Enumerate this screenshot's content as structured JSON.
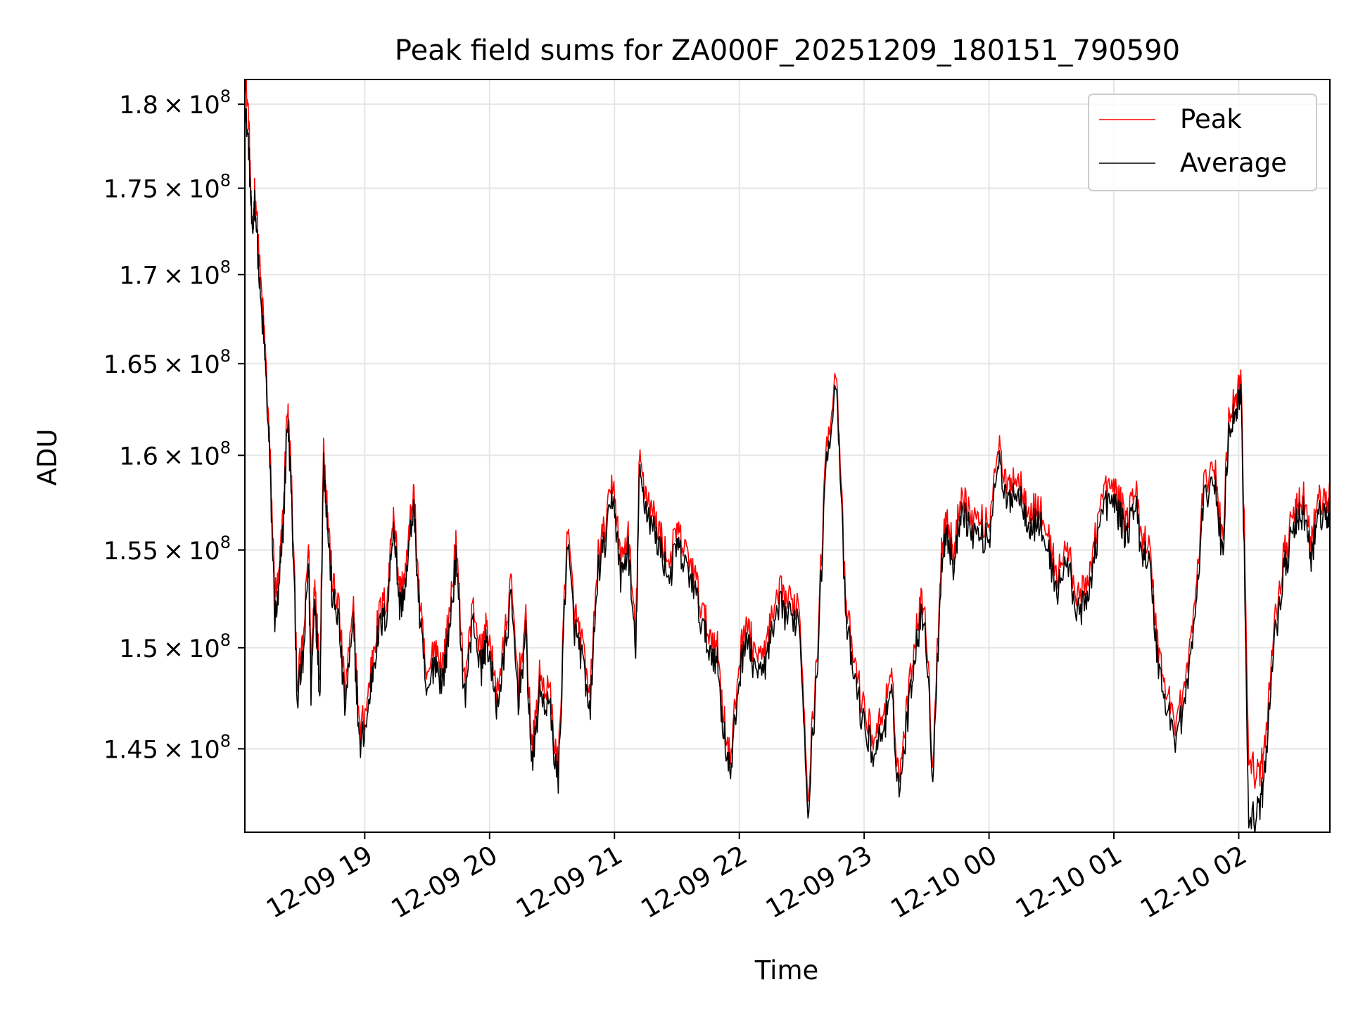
{
  "chart_data": {
    "type": "line",
    "title": "Peak field sums for ZA000F_20251209_180151_790590",
    "xlabel": "Time",
    "ylabel": "ADU",
    "xlim_hours": [
      18.04,
      26.73
    ],
    "ylim": [
      141000000,
      181500000
    ],
    "y_scale": "log",
    "grid": true,
    "legend_position": "top-right",
    "x_ticks": [
      {
        "hours": 19,
        "label": "12-09 19"
      },
      {
        "hours": 20,
        "label": "12-09 20"
      },
      {
        "hours": 21,
        "label": "12-09 21"
      },
      {
        "hours": 22,
        "label": "12-09 22"
      },
      {
        "hours": 23,
        "label": "12-09 23"
      },
      {
        "hours": 24,
        "label": "12-10 00"
      },
      {
        "hours": 25,
        "label": "12-10 01"
      },
      {
        "hours": 26,
        "label": "12-10 02"
      }
    ],
    "y_ticks": [
      {
        "value": 145000000,
        "mantissa": "1.45",
        "exponent": "8"
      },
      {
        "value": 150000000,
        "mantissa": "1.5",
        "exponent": "8"
      },
      {
        "value": 155000000,
        "mantissa": "1.55",
        "exponent": "8"
      },
      {
        "value": 160000000,
        "mantissa": "1.6",
        "exponent": "8"
      },
      {
        "value": 165000000,
        "mantissa": "1.65",
        "exponent": "8"
      },
      {
        "value": 170000000,
        "mantissa": "1.7",
        "exponent": "8"
      },
      {
        "value": 175000000,
        "mantissa": "1.75",
        "exponent": "8"
      },
      {
        "value": 180000000,
        "mantissa": "1.8",
        "exponent": "8"
      }
    ],
    "times_symbol": "×",
    "y_mantissa_base": "10",
    "series": [
      {
        "name": "Peak",
        "color": "#ff0000",
        "offset_e8": 0.003,
        "x_hours": [
          18.04,
          18.07,
          18.1,
          18.12,
          18.16,
          18.2,
          18.24,
          18.28,
          18.31,
          18.35,
          18.38,
          18.41,
          18.46,
          18.51,
          18.55,
          18.57,
          18.6,
          18.64,
          18.67,
          18.7,
          18.74,
          18.79,
          18.84,
          18.91,
          18.96,
          19.02,
          19.07,
          19.12,
          19.18,
          19.23,
          19.28,
          19.33,
          19.39,
          19.44,
          19.5,
          19.56,
          19.62,
          19.67,
          19.73,
          19.8,
          19.87,
          19.93,
          19.98,
          20.05,
          20.1,
          20.17,
          20.23,
          20.29,
          20.34,
          20.4,
          20.48,
          20.55,
          20.62,
          20.68,
          20.74,
          20.8,
          20.87,
          20.93,
          20.99,
          21.05,
          21.11,
          21.17,
          21.2,
          21.25,
          21.3,
          21.37,
          21.44,
          21.5,
          21.55,
          21.62,
          21.69,
          21.75,
          21.82,
          21.87,
          21.93,
          21.99,
          22.05,
          22.1,
          22.18,
          22.25,
          22.33,
          22.4,
          22.48,
          22.55,
          22.62,
          22.7,
          22.78,
          22.85,
          22.92,
          23.0,
          23.08,
          23.15,
          23.22,
          23.28,
          23.35,
          23.42,
          23.48,
          23.55,
          23.62,
          23.66,
          23.72,
          23.78,
          23.85,
          23.92,
          24.0,
          24.07,
          24.14,
          24.2,
          24.27,
          24.33,
          24.4,
          24.48,
          24.55,
          24.62,
          24.7,
          24.78,
          24.85,
          24.92,
          25.0,
          25.05,
          25.1,
          25.17,
          25.22,
          25.28,
          25.35,
          25.42,
          25.5,
          25.58,
          25.65,
          25.72,
          25.8,
          25.87,
          25.92,
          25.98,
          26.02,
          26.08,
          26.15,
          26.2,
          26.27,
          26.35,
          26.42,
          26.47,
          26.52,
          26.58,
          26.64,
          26.7,
          26.73
        ],
        "values_e8": [
          1.815,
          1.79,
          1.715,
          1.75,
          1.7,
          1.66,
          1.6,
          1.525,
          1.53,
          1.57,
          1.625,
          1.59,
          1.48,
          1.5,
          1.552,
          1.485,
          1.535,
          1.48,
          1.603,
          1.57,
          1.53,
          1.52,
          1.475,
          1.515,
          1.455,
          1.47,
          1.497,
          1.515,
          1.523,
          1.57,
          1.525,
          1.537,
          1.58,
          1.52,
          1.478,
          1.5,
          1.487,
          1.51,
          1.549,
          1.48,
          1.52,
          1.493,
          1.51,
          1.475,
          1.49,
          1.53,
          1.48,
          1.51,
          1.445,
          1.482,
          1.475,
          1.436,
          1.56,
          1.515,
          1.5,
          1.47,
          1.545,
          1.56,
          1.585,
          1.54,
          1.556,
          1.5,
          1.595,
          1.578,
          1.568,
          1.555,
          1.54,
          1.558,
          1.548,
          1.54,
          1.52,
          1.505,
          1.5,
          1.466,
          1.44,
          1.485,
          1.512,
          1.5,
          1.49,
          1.508,
          1.525,
          1.52,
          1.52,
          1.426,
          1.49,
          1.605,
          1.644,
          1.52,
          1.49,
          1.465,
          1.452,
          1.465,
          1.48,
          1.432,
          1.472,
          1.51,
          1.525,
          1.44,
          1.55,
          1.565,
          1.545,
          1.58,
          1.565,
          1.563,
          1.56,
          1.605,
          1.578,
          1.587,
          1.58,
          1.567,
          1.57,
          1.552,
          1.534,
          1.55,
          1.525,
          1.525,
          1.556,
          1.578,
          1.58,
          1.572,
          1.562,
          1.58,
          1.556,
          1.55,
          1.5,
          1.475,
          1.46,
          1.482,
          1.52,
          1.58,
          1.595,
          1.55,
          1.62,
          1.63,
          1.64,
          1.44,
          1.435,
          1.44,
          1.5,
          1.54,
          1.56,
          1.57,
          1.575,
          1.55,
          1.575,
          1.57,
          1.575
        ]
      },
      {
        "name": "Average",
        "color": "#000000",
        "offset_e8": 0.0,
        "x_hours": [
          18.04,
          18.07,
          18.1,
          18.12,
          18.16,
          18.2,
          18.24,
          18.28,
          18.31,
          18.35,
          18.38,
          18.41,
          18.46,
          18.51,
          18.55,
          18.57,
          18.6,
          18.64,
          18.67,
          18.7,
          18.74,
          18.79,
          18.84,
          18.91,
          18.96,
          19.02,
          19.07,
          19.12,
          19.18,
          19.23,
          19.28,
          19.33,
          19.39,
          19.44,
          19.5,
          19.56,
          19.62,
          19.67,
          19.73,
          19.8,
          19.87,
          19.93,
          19.98,
          20.05,
          20.1,
          20.17,
          20.23,
          20.29,
          20.34,
          20.4,
          20.48,
          20.55,
          20.62,
          20.68,
          20.74,
          20.8,
          20.87,
          20.93,
          20.99,
          21.05,
          21.11,
          21.17,
          21.2,
          21.25,
          21.3,
          21.37,
          21.44,
          21.5,
          21.55,
          21.62,
          21.69,
          21.75,
          21.82,
          21.87,
          21.93,
          21.99,
          22.05,
          22.1,
          22.18,
          22.25,
          22.33,
          22.4,
          22.48,
          22.55,
          22.62,
          22.7,
          22.78,
          22.85,
          22.92,
          23.0,
          23.08,
          23.15,
          23.22,
          23.28,
          23.35,
          23.42,
          23.48,
          23.55,
          23.62,
          23.66,
          23.72,
          23.78,
          23.85,
          23.92,
          24.0,
          24.07,
          24.14,
          24.2,
          24.27,
          24.33,
          24.4,
          24.48,
          24.55,
          24.62,
          24.7,
          24.78,
          24.85,
          24.92,
          25.0,
          25.05,
          25.1,
          25.17,
          25.22,
          25.28,
          25.35,
          25.42,
          25.5,
          25.58,
          25.65,
          25.72,
          25.8,
          25.87,
          25.92,
          25.98,
          26.02,
          26.08,
          26.15,
          26.2,
          26.27,
          26.35,
          26.42,
          26.47,
          26.52,
          26.58,
          26.64,
          26.7,
          26.73
        ],
        "values_e8": [
          1.8,
          1.775,
          1.72,
          1.745,
          1.69,
          1.655,
          1.595,
          1.515,
          1.525,
          1.565,
          1.62,
          1.585,
          1.475,
          1.495,
          1.545,
          1.478,
          1.528,
          1.475,
          1.598,
          1.565,
          1.525,
          1.515,
          1.47,
          1.51,
          1.45,
          1.465,
          1.492,
          1.51,
          1.518,
          1.565,
          1.52,
          1.532,
          1.575,
          1.515,
          1.473,
          1.495,
          1.482,
          1.505,
          1.544,
          1.475,
          1.515,
          1.488,
          1.505,
          1.47,
          1.485,
          1.525,
          1.475,
          1.505,
          1.44,
          1.477,
          1.47,
          1.432,
          1.555,
          1.51,
          1.495,
          1.465,
          1.54,
          1.555,
          1.58,
          1.535,
          1.551,
          1.495,
          1.59,
          1.573,
          1.563,
          1.55,
          1.535,
          1.553,
          1.543,
          1.535,
          1.515,
          1.5,
          1.495,
          1.461,
          1.436,
          1.48,
          1.507,
          1.495,
          1.485,
          1.503,
          1.52,
          1.515,
          1.515,
          1.421,
          1.485,
          1.6,
          1.641,
          1.515,
          1.485,
          1.46,
          1.447,
          1.46,
          1.475,
          1.428,
          1.467,
          1.505,
          1.52,
          1.436,
          1.545,
          1.56,
          1.54,
          1.575,
          1.56,
          1.558,
          1.555,
          1.6,
          1.573,
          1.582,
          1.575,
          1.562,
          1.565,
          1.547,
          1.529,
          1.545,
          1.52,
          1.52,
          1.551,
          1.573,
          1.575,
          1.567,
          1.557,
          1.575,
          1.551,
          1.545,
          1.495,
          1.47,
          1.455,
          1.477,
          1.515,
          1.575,
          1.59,
          1.545,
          1.615,
          1.625,
          1.635,
          1.413,
          1.42,
          1.43,
          1.495,
          1.535,
          1.555,
          1.565,
          1.57,
          1.545,
          1.57,
          1.565,
          1.57
        ]
      }
    ]
  }
}
